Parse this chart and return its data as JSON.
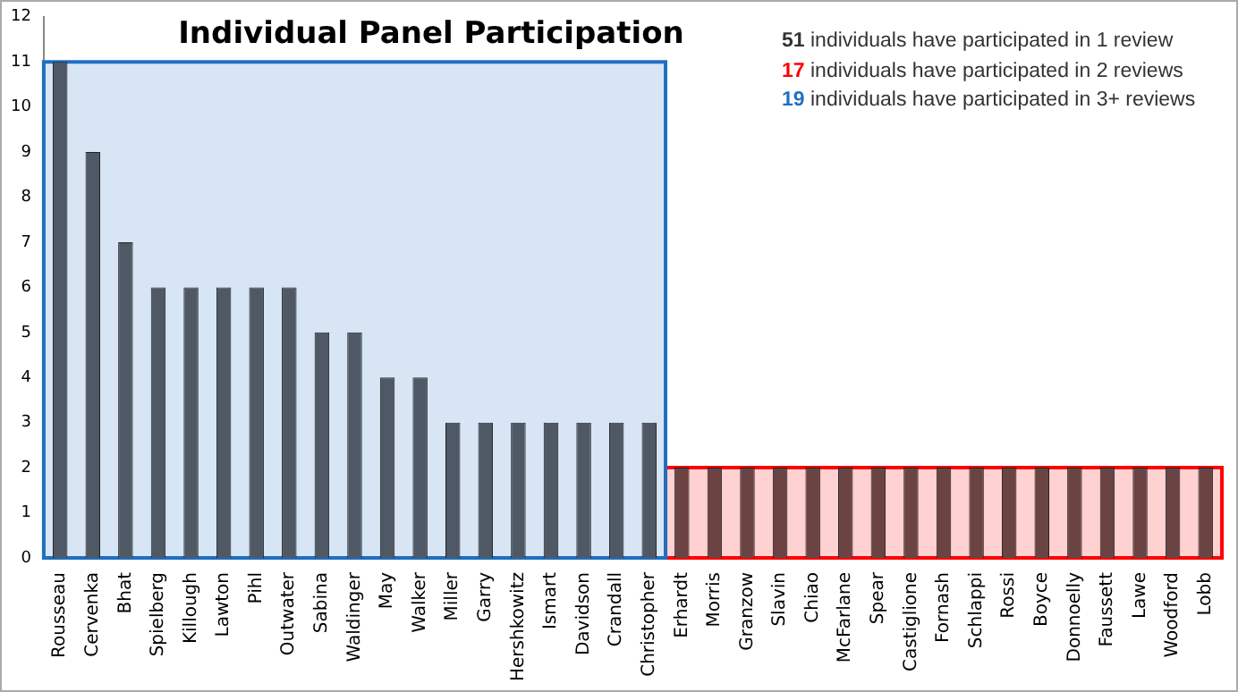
{
  "chart_data": {
    "type": "bar",
    "title": "Individual Panel Participation",
    "categories": [
      "Rousseau",
      "Cervenka",
      "Bhat",
      "Spielberg",
      "Killough",
      "Lawton",
      "Pihl",
      "Outwater",
      "Sabina",
      "Waldinger",
      "May",
      "Walker",
      "Miller",
      "Garry",
      "Hershkowitz",
      "Ismart",
      "Davidson",
      "Crandall",
      "Christopher",
      "Erhardt",
      "Morris",
      "Granzow",
      "Slavin",
      "Chiao",
      "McFarlane",
      "Spear",
      "Castiglione",
      "Fornash",
      "Schlappi",
      "Rossi",
      "Boyce",
      "Donnoelly",
      "Faussett",
      "Lawe",
      "Woodford",
      "Lobb"
    ],
    "values": [
      11,
      9,
      7,
      6,
      6,
      6,
      6,
      6,
      5,
      5,
      4,
      4,
      3,
      3,
      3,
      3,
      3,
      3,
      3,
      2,
      2,
      2,
      2,
      2,
      2,
      2,
      2,
      2,
      2,
      2,
      2,
      2,
      2,
      2,
      2,
      2
    ],
    "colors": [
      "#4f5966",
      "#4f5966",
      "#4f5966",
      "#4f5966",
      "#4f5966",
      "#4f5966",
      "#4f5966",
      "#4f5966",
      "#4f5966",
      "#4f5966",
      "#4f5966",
      "#4f5966",
      "#4f5966",
      "#4f5966",
      "#4f5966",
      "#4f5966",
      "#4f5966",
      "#4f5966",
      "#4f5966",
      "#6b4343",
      "#6b4343",
      "#6b4343",
      "#6b4343",
      "#6b4343",
      "#6b4343",
      "#6b4343",
      "#6b4343",
      "#6b4343",
      "#6b4343",
      "#6b4343",
      "#6b4343",
      "#6b4343",
      "#6b4343",
      "#6b4343",
      "#6b4343",
      "#6b4343"
    ],
    "ylim": [
      0,
      12
    ],
    "yticks": [
      0,
      1,
      2,
      3,
      4,
      5,
      6,
      7,
      8,
      9,
      10,
      11,
      12
    ],
    "grid": false,
    "bands": [
      {
        "axis": "x",
        "from": "Erhardt",
        "to": "Lobb",
        "color": "#ff0000"
      },
      {
        "axis": "x",
        "from": "Rousseau",
        "to": "Christopher",
        "color": "#1f6fc0"
      }
    ],
    "annotations": [
      "51 individuals have participated in 1 review",
      "17 individuals have participated in 2 reviews",
      "19 individuals have participated in 3+ reviews"
    ]
  }
}
